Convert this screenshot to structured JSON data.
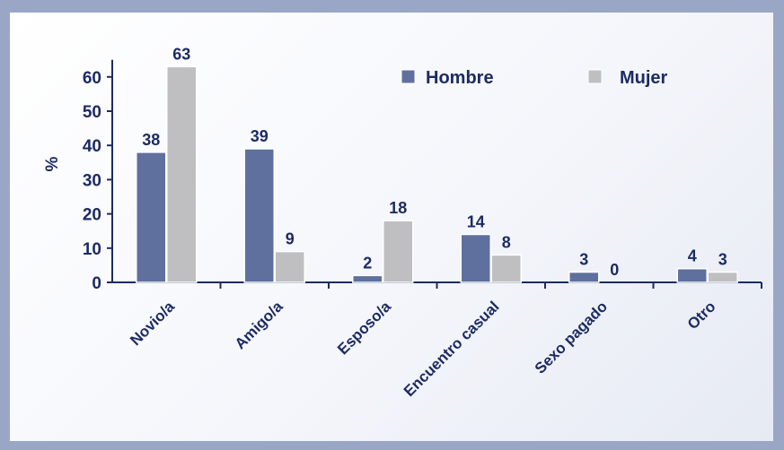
{
  "chart_data": {
    "type": "bar",
    "title": "",
    "xlabel": "",
    "ylabel": "%",
    "ylim": [
      0,
      65
    ],
    "yticks": [
      0,
      10,
      20,
      30,
      40,
      50,
      60
    ],
    "categories": [
      "Novio/a",
      "Amigo/a",
      "Esposo/a",
      "Encuentro casual",
      "Sexo pagado",
      "Otro"
    ],
    "series": [
      {
        "name": "Hombre",
        "values": [
          38,
          39,
          2,
          14,
          3,
          4
        ],
        "color": "#5f709e"
      },
      {
        "name": "Mujer",
        "values": [
          63,
          9,
          18,
          8,
          0,
          3
        ],
        "color": "#bfbfc1"
      }
    ],
    "legend": "top-right",
    "grid": false,
    "axis_color": "#1d2b63",
    "label_color": "#1d2b63",
    "frame_color": "#9aa6c6"
  }
}
